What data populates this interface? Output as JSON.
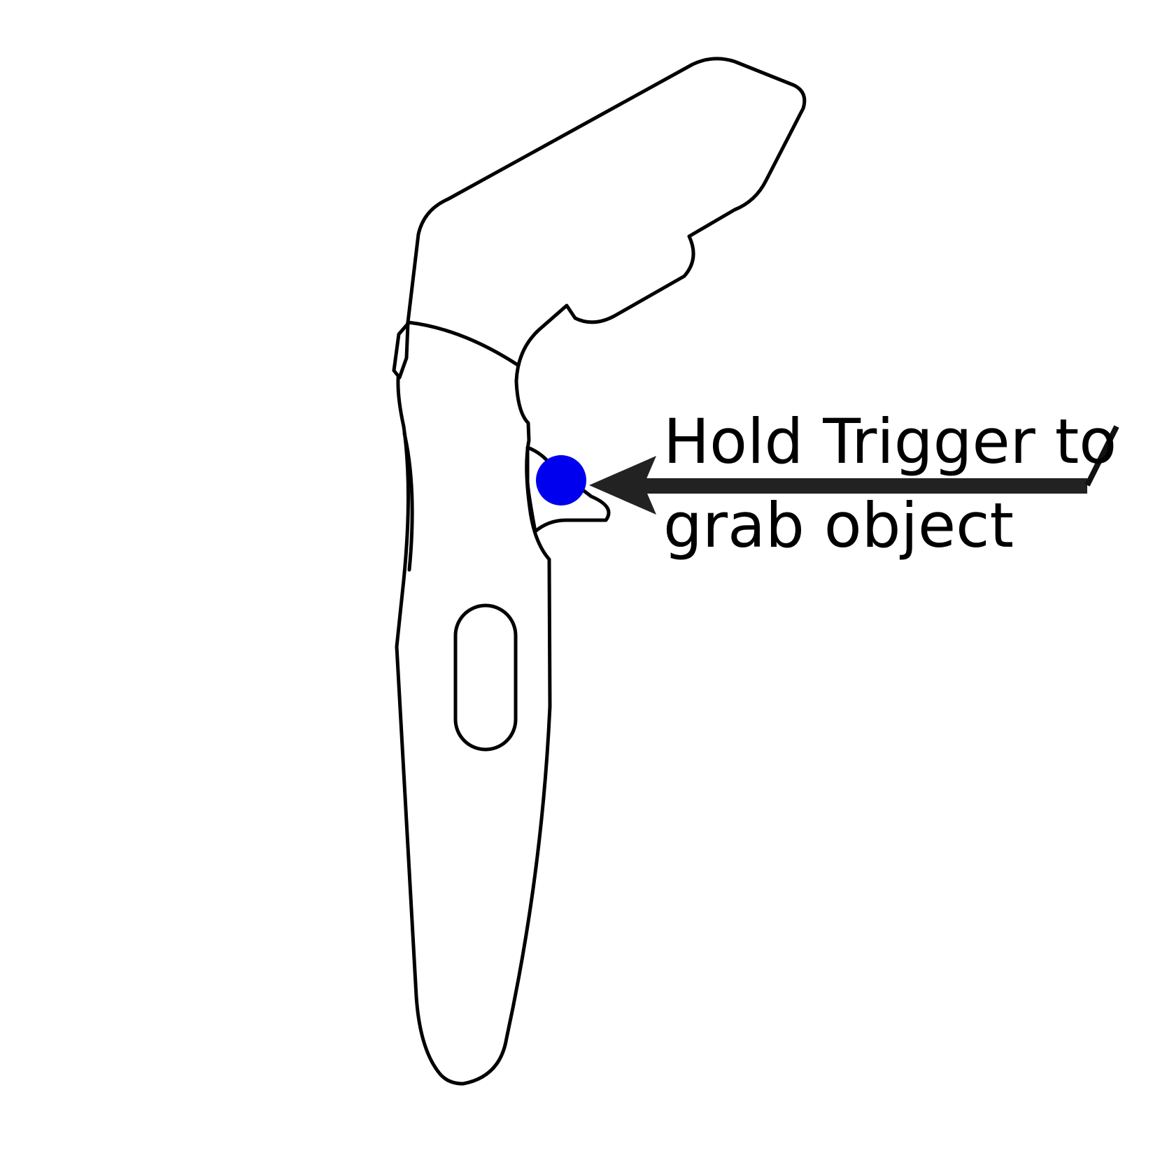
{
  "callout": {
    "line1": "Hold Trigger to",
    "line2": "grab object"
  },
  "colors": {
    "marker": "#0000ee",
    "arrow": "#222222",
    "outline": "#000000",
    "background": "#ffffff"
  },
  "icons": {
    "controller": "vr-controller-outline",
    "marker": "trigger-marker-dot",
    "arrow": "callout-arrow"
  }
}
